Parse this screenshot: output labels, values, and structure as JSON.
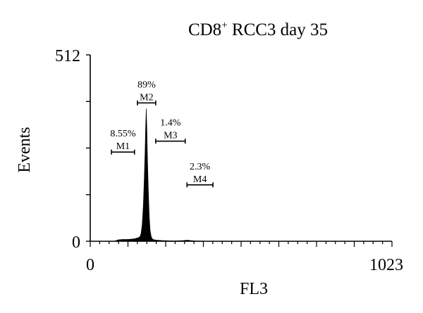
{
  "chart_data": {
    "type": "histogram",
    "title": "CD8",
    "title_superscript": "+",
    "title_rest": " RCC3 day 35",
    "xlabel": "FL3",
    "ylabel": "Events",
    "xlim": [
      0,
      1023
    ],
    "ylim": [
      0,
      512
    ],
    "x_tick_labels": [
      {
        "value": 0,
        "label": "0"
      },
      {
        "value": 1023,
        "label": "1023"
      }
    ],
    "y_tick_labels": [
      {
        "value": 0,
        "label": "0"
      },
      {
        "value": 512,
        "label": "512"
      }
    ],
    "fill_color": "#000000",
    "histogram": [
      [
        0,
        0
      ],
      [
        80,
        0
      ],
      [
        88,
        2
      ],
      [
        95,
        4
      ],
      [
        110,
        5
      ],
      [
        125,
        5
      ],
      [
        140,
        6
      ],
      [
        150,
        7
      ],
      [
        160,
        9
      ],
      [
        168,
        12
      ],
      [
        172,
        20
      ],
      [
        176,
        45
      ],
      [
        180,
        100
      ],
      [
        183,
        170
      ],
      [
        186,
        250
      ],
      [
        188,
        320
      ],
      [
        190,
        365
      ],
      [
        192,
        310
      ],
      [
        194,
        230
      ],
      [
        197,
        140
      ],
      [
        200,
        70
      ],
      [
        203,
        30
      ],
      [
        207,
        12
      ],
      [
        212,
        5
      ],
      [
        225,
        3
      ],
      [
        245,
        2
      ],
      [
        280,
        1
      ],
      [
        315,
        2
      ],
      [
        330,
        3
      ],
      [
        340,
        2
      ],
      [
        355,
        1
      ],
      [
        420,
        0
      ],
      [
        1023,
        0
      ]
    ],
    "markers": [
      {
        "name": "M1",
        "percent": "8.55%",
        "range": [
          72,
          150
        ],
        "level": 245
      },
      {
        "name": "M2",
        "percent": "89%",
        "range": [
          160,
          222
        ],
        "level": 380
      },
      {
        "name": "M3",
        "percent": "1.4%",
        "range": [
          222,
          322
        ],
        "level": 275
      },
      {
        "name": "M4",
        "percent": "2.3%",
        "range": [
          328,
          416
        ],
        "level": 155
      }
    ]
  }
}
